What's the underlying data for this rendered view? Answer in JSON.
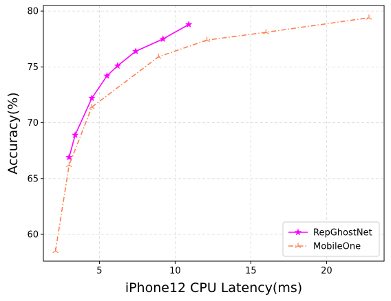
{
  "chart_data": {
    "type": "line",
    "title": "",
    "xlabel": "iPhone12 CPU Latency(ms)",
    "ylabel": "Accuracy(%)",
    "xlim": [
      1.3,
      23.8
    ],
    "ylim": [
      57.6,
      80.5
    ],
    "xticks": [
      5,
      10,
      15,
      20
    ],
    "yticks": [
      60,
      65,
      70,
      75,
      80
    ],
    "grid": true,
    "legend_position": "lower-right",
    "series": [
      {
        "name": "RepGhostNet",
        "color": "#ff00ff",
        "line_style": "solid",
        "marker": "star",
        "x": [
          3.0,
          3.4,
          4.5,
          5.5,
          6.2,
          7.4,
          9.2,
          10.9
        ],
        "y": [
          66.9,
          68.9,
          72.2,
          74.2,
          75.1,
          76.4,
          77.5,
          78.8
        ]
      },
      {
        "name": "MobileOne",
        "color": "#ff7f50",
        "line_style": "dashdot",
        "marker": "tri",
        "x": [
          2.1,
          3.0,
          4.5,
          8.9,
          12.1,
          16.0,
          22.8
        ],
        "y": [
          58.5,
          66.2,
          71.4,
          75.9,
          77.4,
          78.1,
          79.4
        ]
      }
    ]
  }
}
